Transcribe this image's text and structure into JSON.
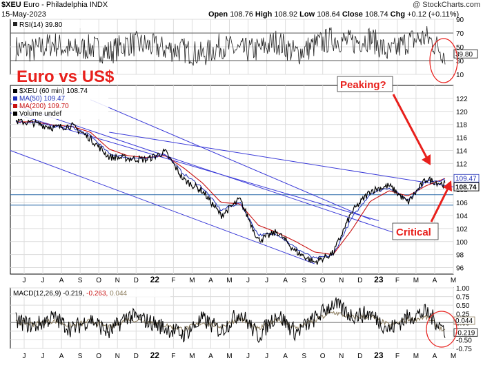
{
  "header": {
    "symbol": "$XEU",
    "name": "Euro - Philadelphia",
    "exchange": "INDX",
    "date": "15-May-2023",
    "open_label": "Open",
    "open": "108.76",
    "high_label": "High",
    "high": "108.92",
    "low_label": "Low",
    "low": "108.64",
    "close_label": "Close",
    "close": "108.74",
    "chg_label": "Chg",
    "chg": "+0.12 (+0.11%)",
    "credit": "@ StockCharts.com"
  },
  "colors": {
    "price": "#000000",
    "ma50": "#1f2fb8",
    "ma200": "#c81010",
    "channel": "#3a3ad8",
    "support": "#2a6aa8",
    "annotation": "#e8201c",
    "macd": "#000000",
    "signal": "#8a7a5a",
    "grid": "#dcdcdc"
  },
  "annotations": {
    "title": "Euro vs US$",
    "peaking": "Peaking?",
    "critical": "Critical"
  },
  "chart_data": [
    {
      "type": "line",
      "panel": "rsi",
      "legend": "RSI(14) 39.80",
      "current_value": 39.8,
      "ylim": [
        10,
        90
      ],
      "y_ticks": [
        10,
        30,
        50,
        70,
        90
      ],
      "reference_lines": [
        30,
        70
      ],
      "value_label": "39.80",
      "series": [
        {
          "name": "RSI(14)",
          "x": [
            "Jun 2021",
            "Jul 2021",
            "Aug 2021",
            "Sep 2021",
            "Oct 2021",
            "Nov 2021",
            "Dec 2021",
            "Jan 2022",
            "Feb 2022",
            "Mar 2022",
            "Apr 2022",
            "May 2022",
            "Jun 2022",
            "Jul 2022",
            "Aug 2022",
            "Sep 2022",
            "Oct 2022",
            "Nov 2022",
            "Dec 2022",
            "Jan 2023",
            "Feb 2023",
            "Mar 2023",
            "Apr 2023",
            "May 2023"
          ],
          "values": [
            48,
            45,
            55,
            44,
            50,
            42,
            55,
            52,
            47,
            45,
            38,
            52,
            44,
            46,
            58,
            40,
            52,
            62,
            56,
            63,
            40,
            58,
            64,
            40
          ]
        }
      ]
    },
    {
      "type": "line",
      "panel": "price",
      "legend": [
        {
          "label": "$XEU (60 min) 108.74",
          "color_key": "price"
        },
        {
          "label": "MA(50) 109.47",
          "color_key": "ma50"
        },
        {
          "label": "MA(200) 109.70",
          "color_key": "ma200"
        },
        {
          "label": "Volume undef",
          "color_key": "price"
        }
      ],
      "ylim": [
        95,
        124
      ],
      "y_ticks": [
        96,
        98,
        100,
        102,
        104,
        106,
        108,
        110,
        112,
        114,
        116,
        118,
        120,
        122
      ],
      "x_tick_labels": [
        "J",
        "J",
        "A",
        "S",
        "O",
        "N",
        "D",
        "22",
        "F",
        "M",
        "A",
        "M",
        "J",
        "J",
        "A",
        "S",
        "O",
        "N",
        "D",
        "23",
        "F",
        "M",
        "A",
        "M"
      ],
      "price_labels": [
        "109.47",
        "108.74"
      ],
      "series": [
        {
          "name": "$XEU (60 min)",
          "x": [
            "Jun 2021",
            "Jul 2021",
            "Aug 2021",
            "Sep 2021",
            "Oct 2021",
            "Nov 2021",
            "Dec 2021",
            "Jan 2022",
            "Feb 2022",
            "Mar 2022",
            "Apr 2022",
            "May 2022",
            "Jun 2022",
            "Jul 2022",
            "Aug 2022",
            "Sep 2022",
            "Oct 2022",
            "Nov 2022",
            "Dec 2022",
            "Jan 2023",
            "Feb 2023",
            "Mar 2023",
            "Apr 2023",
            "May 2023"
          ],
          "values": [
            118.5,
            118.2,
            117.5,
            117.8,
            115.8,
            113.0,
            112.8,
            112.6,
            113.8,
            109.5,
            107.8,
            104.0,
            106.5,
            100.2,
            101.5,
            98.5,
            96.8,
            98.2,
            104.5,
            107.8,
            108.6,
            106.0,
            109.6,
            108.74
          ]
        },
        {
          "name": "MA(50)",
          "values": [
            118.4,
            118.3,
            117.7,
            117.6,
            116.3,
            113.5,
            112.9,
            112.7,
            113.5,
            110.4,
            108.3,
            104.8,
            106.0,
            101.0,
            101.2,
            99.0,
            97.4,
            97.9,
            103.6,
            107.4,
            108.3,
            106.4,
            109.3,
            109.47
          ]
        },
        {
          "name": "MA(200)",
          "values": [
            118.4,
            118.4,
            117.9,
            117.7,
            116.8,
            114.2,
            113.2,
            112.9,
            113.2,
            111.3,
            109.0,
            106.0,
            105.8,
            102.5,
            101.4,
            100.0,
            98.4,
            98.0,
            101.8,
            106.2,
            107.8,
            107.0,
            108.6,
            109.7
          ]
        }
      ]
    },
    {
      "type": "line",
      "panel": "macd",
      "legend": {
        "name": "MACD(12,26,9)",
        "macd": "-0.219",
        "signal": "-0.263",
        "histogram": "0.044"
      },
      "ylim": [
        -0.75,
        1.0
      ],
      "y_ticks": [
        -0.75,
        -0.5,
        -0.25,
        0.0,
        0.25,
        0.5,
        0.75,
        1.0
      ],
      "y_tick_labels": [
        "-0.75",
        "-0.50",
        "-0.25",
        "0.00",
        "0.25",
        "0.50",
        "0.75",
        "1.00"
      ],
      "value_labels": [
        "0.044",
        "-0.219"
      ],
      "x_tick_labels": [
        "J",
        "J",
        "A",
        "S",
        "O",
        "N",
        "D",
        "22",
        "F",
        "M",
        "A",
        "M",
        "J",
        "J",
        "A",
        "S",
        "O",
        "N",
        "D",
        "23",
        "F",
        "M",
        "A",
        "M"
      ],
      "series": [
        {
          "name": "MACD",
          "x": [
            "Jun 2021",
            "Jul 2021",
            "Aug 2021",
            "Sep 2021",
            "Oct 2021",
            "Nov 2021",
            "Dec 2021",
            "Jan 2022",
            "Feb 2022",
            "Mar 2022",
            "Apr 2022",
            "May 2022",
            "Jun 2022",
            "Jul 2022",
            "Aug 2022",
            "Sep 2022",
            "Oct 2022",
            "Nov 2022",
            "Dec 2022",
            "Jan 2023",
            "Feb 2023",
            "Mar 2023",
            "Apr 2023",
            "May 2023"
          ],
          "values": [
            0.05,
            -0.1,
            0.15,
            -0.2,
            0.1,
            -0.3,
            0.2,
            0.05,
            -0.15,
            -0.35,
            0.1,
            -0.25,
            0.3,
            -0.4,
            0.25,
            -0.3,
            0.1,
            0.55,
            0.2,
            0.25,
            -0.2,
            0.15,
            0.3,
            -0.219
          ]
        },
        {
          "name": "Signal",
          "values": [
            0.02,
            -0.05,
            0.05,
            -0.1,
            0.05,
            -0.15,
            0.1,
            0.04,
            -0.08,
            -0.2,
            0.0,
            -0.12,
            0.12,
            -0.2,
            0.1,
            -0.15,
            0.05,
            0.3,
            0.15,
            0.18,
            -0.08,
            0.08,
            0.15,
            -0.263
          ]
        },
        {
          "name": "Histogram",
          "values": [
            0.03,
            -0.05,
            0.1,
            -0.1,
            0.05,
            -0.15,
            0.1,
            0.01,
            -0.07,
            -0.15,
            0.1,
            -0.13,
            0.18,
            -0.2,
            0.15,
            -0.15,
            0.05,
            0.25,
            0.05,
            0.07,
            -0.12,
            0.07,
            0.15,
            0.044
          ]
        }
      ]
    }
  ]
}
